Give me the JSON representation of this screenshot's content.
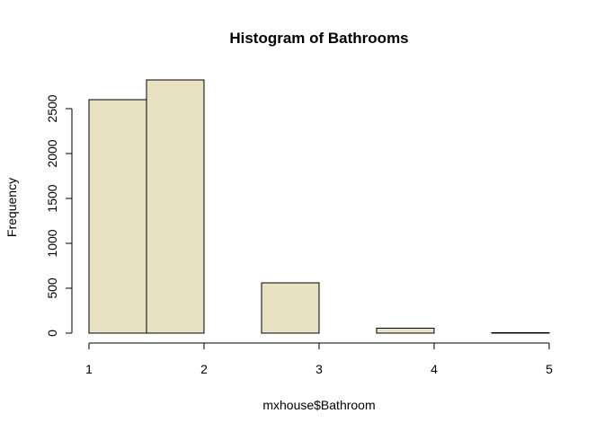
{
  "chart_data": {
    "type": "bar",
    "title": "Histogram of Bathrooms",
    "xlabel": "mxhouse$Bathroom",
    "ylabel": "Frequency",
    "bins": [
      {
        "start": 1.0,
        "end": 1.5,
        "count": 2600
      },
      {
        "start": 1.5,
        "end": 2.0,
        "count": 2820
      },
      {
        "start": 2.0,
        "end": 2.5,
        "count": 0
      },
      {
        "start": 2.5,
        "end": 3.0,
        "count": 560
      },
      {
        "start": 3.0,
        "end": 3.5,
        "count": 0
      },
      {
        "start": 3.5,
        "end": 4.0,
        "count": 55
      },
      {
        "start": 4.0,
        "end": 4.5,
        "count": 0
      },
      {
        "start": 4.5,
        "end": 5.0,
        "count": 5
      }
    ],
    "xlim": [
      1,
      5
    ],
    "ylim": [
      0,
      2850
    ],
    "x_ticks": [
      1,
      2,
      3,
      4,
      5
    ],
    "y_ticks": [
      0,
      500,
      1000,
      1500,
      2000,
      2500
    ],
    "bar_color": "#e8e2c2",
    "grid": false
  }
}
